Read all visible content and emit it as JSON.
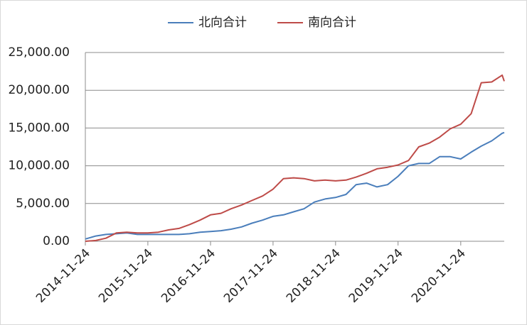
{
  "chart_data": {
    "type": "line",
    "x": [
      "2014-11-24",
      "2015-01-24",
      "2015-03-24",
      "2015-05-24",
      "2015-07-24",
      "2015-09-24",
      "2015-11-24",
      "2016-01-24",
      "2016-03-24",
      "2016-05-24",
      "2016-07-24",
      "2016-09-24",
      "2016-11-24",
      "2017-01-24",
      "2017-03-24",
      "2017-05-24",
      "2017-07-24",
      "2017-09-24",
      "2017-11-24",
      "2018-01-24",
      "2018-03-24",
      "2018-05-24",
      "2018-07-24",
      "2018-09-24",
      "2018-11-24",
      "2019-01-24",
      "2019-03-24",
      "2019-05-24",
      "2019-07-24",
      "2019-09-24",
      "2019-11-24",
      "2020-01-24",
      "2020-03-24",
      "2020-05-24",
      "2020-07-24",
      "2020-09-24",
      "2020-11-24",
      "2021-01-24",
      "2021-03-24",
      "2021-05-24",
      "2021-07-24",
      "2021-08-05"
    ],
    "series": [
      {
        "name": "北向合计",
        "color": "#4a7ebb",
        "values": [
          300,
          700,
          900,
          1000,
          1100,
          900,
          900,
          900,
          900,
          900,
          1000,
          1200,
          1300,
          1400,
          1600,
          1900,
          2400,
          2800,
          3300,
          3500,
          3900,
          4300,
          5200,
          5600,
          5800,
          6200,
          7500,
          7700,
          7200,
          7500,
          8600,
          10000,
          10300,
          10300,
          11200,
          11200,
          10900,
          11800,
          12600,
          13300,
          14300,
          14400
        ]
      },
      {
        "name": "南向合计",
        "color": "#be4b48",
        "values": [
          0,
          100,
          400,
          1100,
          1200,
          1100,
          1100,
          1200,
          1500,
          1700,
          2200,
          2800,
          3500,
          3700,
          4300,
          4800,
          5400,
          6000,
          6900,
          8300,
          8400,
          8300,
          8000,
          8100,
          8000,
          8100,
          8500,
          9000,
          9600,
          9800,
          10100,
          10700,
          12500,
          13000,
          13800,
          14900,
          15500,
          16900,
          21000,
          21100,
          22000,
          21200
        ]
      }
    ],
    "xlim": [
      "2014-11-24",
      "2021-08-05"
    ],
    "xticks": [
      "2014-11-24",
      "2015-11-24",
      "2016-11-24",
      "2017-11-24",
      "2018-11-24",
      "2019-11-24",
      "2020-11-24"
    ],
    "ylim": [
      0,
      25000
    ],
    "yticks": [
      {
        "value": 0,
        "label": "0.00"
      },
      {
        "value": 5000,
        "label": "5,000.00"
      },
      {
        "value": 10000,
        "label": "10,000.00"
      },
      {
        "value": 15000,
        "label": "15,000.00"
      },
      {
        "value": 20000,
        "label": "20,000.00"
      },
      {
        "value": 25000,
        "label": "25,000.00"
      }
    ],
    "grid": true,
    "legend": "top"
  }
}
